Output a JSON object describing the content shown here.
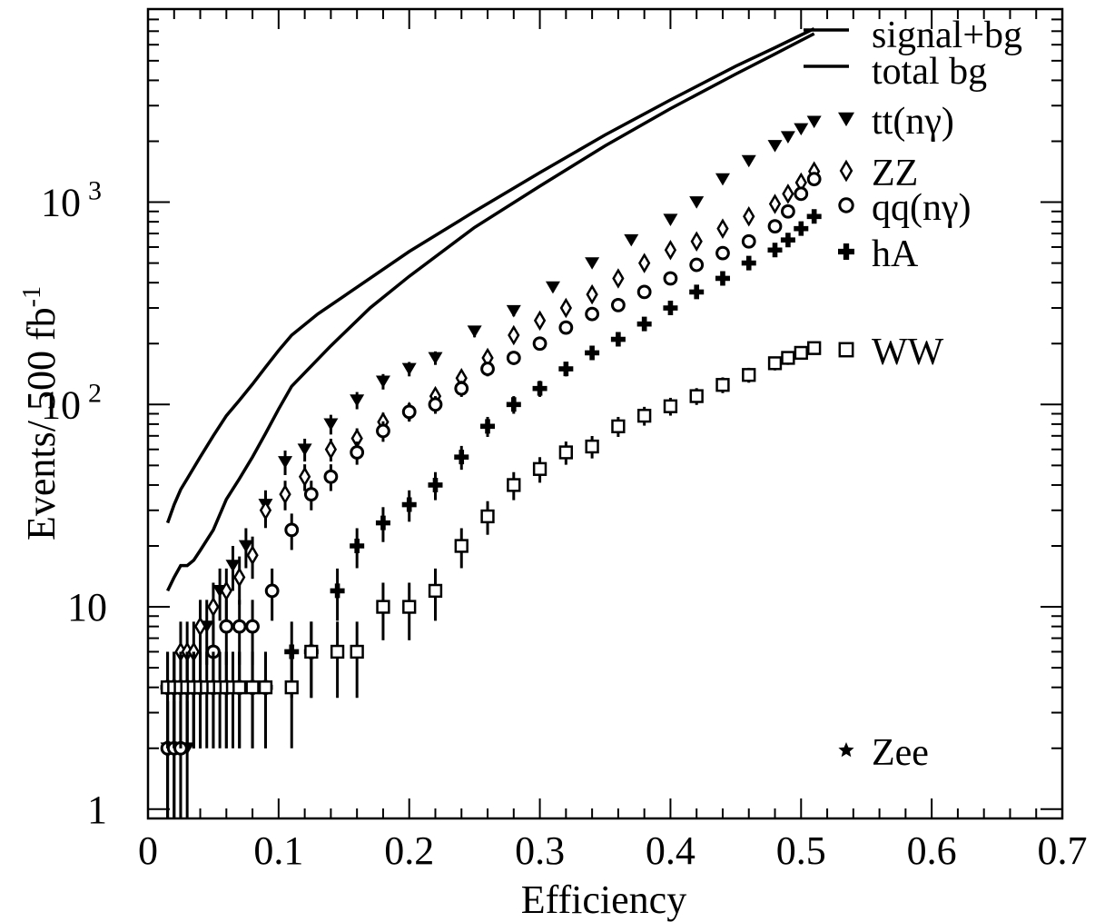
{
  "chart_data": {
    "type": "scatter",
    "xlabel": "Efficiency",
    "ylabel": "Events/ 500 fb",
    "ylabel_exp": "-1",
    "xlim": [
      0,
      0.7
    ],
    "ylim": [
      0.9,
      9000
    ],
    "yscale": "log",
    "grid": false,
    "legend_position": "top-right",
    "x_ticks": [
      {
        "v": 0,
        "label": "0"
      },
      {
        "v": 0.1,
        "label": "0.1"
      },
      {
        "v": 0.2,
        "label": "0.2"
      },
      {
        "v": 0.3,
        "label": "0.3"
      },
      {
        "v": 0.4,
        "label": "0.4"
      },
      {
        "v": 0.5,
        "label": "0.5"
      },
      {
        "v": 0.6,
        "label": "0.6"
      },
      {
        "v": 0.7,
        "label": "0.7"
      }
    ],
    "y_ticks": [
      {
        "v": 1,
        "label": "1",
        "exp": ""
      },
      {
        "v": 10,
        "label": "10",
        "exp": ""
      },
      {
        "v": 100,
        "label": "10",
        "exp": "2"
      },
      {
        "v": 1000,
        "label": "10",
        "exp": "3"
      }
    ],
    "lines": [
      {
        "name": "signal+bg",
        "x": [
          0.015,
          0.02,
          0.025,
          0.03,
          0.04,
          0.05,
          0.06,
          0.07,
          0.08,
          0.09,
          0.1,
          0.11,
          0.13,
          0.16,
          0.2,
          0.25,
          0.3,
          0.35,
          0.4,
          0.45,
          0.48,
          0.5,
          0.51
        ],
        "y": [
          26,
          32,
          38,
          43,
          55,
          70,
          88,
          105,
          126,
          153,
          185,
          220,
          280,
          380,
          570,
          900,
          1400,
          2150,
          3200,
          4700,
          5800,
          6700,
          7200
        ]
      },
      {
        "name": "total bg",
        "x": [
          0.015,
          0.02,
          0.025,
          0.03,
          0.035,
          0.04,
          0.05,
          0.06,
          0.07,
          0.08,
          0.09,
          0.1,
          0.11,
          0.14,
          0.17,
          0.2,
          0.25,
          0.3,
          0.35,
          0.4,
          0.45,
          0.48,
          0.5,
          0.51
        ],
        "y": [
          12,
          14,
          16,
          16,
          17,
          19,
          24,
          34,
          43,
          55,
          72,
          95,
          123,
          195,
          300,
          430,
          750,
          1200,
          1900,
          2900,
          4300,
          5400,
          6300,
          6800
        ]
      }
    ],
    "series": [
      {
        "name": "tt(nγ)",
        "marker": "triangle-down",
        "x": [
          0.015,
          0.02,
          0.025,
          0.03,
          0.035,
          0.045,
          0.055,
          0.065,
          0.075,
          0.09,
          0.105,
          0.12,
          0.14,
          0.16,
          0.18,
          0.2,
          0.22,
          0.25,
          0.28,
          0.31,
          0.34,
          0.37,
          0.4,
          0.42,
          0.44,
          0.46,
          0.48,
          0.49,
          0.5,
          0.51
        ],
        "y": [
          2,
          2,
          2,
          2,
          4,
          8,
          12,
          16,
          20,
          32,
          52,
          60,
          80,
          105,
          130,
          150,
          170,
          230,
          290,
          380,
          500,
          650,
          820,
          1000,
          1300,
          1600,
          1900,
          2100,
          2300,
          2500
        ]
      },
      {
        "name": "ZZ",
        "marker": "diamond",
        "x": [
          0.015,
          0.02,
          0.025,
          0.03,
          0.035,
          0.04,
          0.05,
          0.06,
          0.07,
          0.08,
          0.09,
          0.105,
          0.12,
          0.14,
          0.16,
          0.18,
          0.2,
          0.22,
          0.24,
          0.26,
          0.28,
          0.3,
          0.32,
          0.34,
          0.36,
          0.38,
          0.4,
          0.42,
          0.44,
          0.46,
          0.48,
          0.49,
          0.5,
          0.51
        ],
        "y": [
          2,
          4,
          6,
          6,
          6,
          8,
          10,
          12,
          14,
          18,
          30,
          36,
          44,
          60,
          68,
          82,
          92,
          110,
          135,
          170,
          220,
          260,
          300,
          350,
          420,
          500,
          580,
          640,
          740,
          850,
          980,
          1100,
          1250,
          1420
        ]
      },
      {
        "name": "qq(nγ)",
        "marker": "circle",
        "x": [
          0.015,
          0.02,
          0.025,
          0.03,
          0.035,
          0.04,
          0.05,
          0.06,
          0.07,
          0.08,
          0.095,
          0.11,
          0.125,
          0.14,
          0.16,
          0.18,
          0.2,
          0.22,
          0.24,
          0.26,
          0.28,
          0.3,
          0.32,
          0.34,
          0.36,
          0.38,
          0.4,
          0.42,
          0.44,
          0.46,
          0.48,
          0.49,
          0.5,
          0.51
        ],
        "y": [
          2,
          2,
          2,
          4,
          4,
          4,
          6,
          8,
          8,
          8,
          12,
          24,
          36,
          44,
          58,
          74,
          92,
          100,
          120,
          150,
          170,
          200,
          240,
          280,
          310,
          360,
          420,
          490,
          560,
          640,
          760,
          900,
          1100,
          1300
        ]
      },
      {
        "name": "hA",
        "marker": "cross",
        "x": [
          0.015,
          0.02,
          0.025,
          0.03,
          0.035,
          0.04,
          0.05,
          0.06,
          0.07,
          0.08,
          0.09,
          0.11,
          0.125,
          0.145,
          0.16,
          0.18,
          0.2,
          0.22,
          0.24,
          0.26,
          0.28,
          0.3,
          0.32,
          0.34,
          0.36,
          0.38,
          0.4,
          0.42,
          0.44,
          0.46,
          0.48,
          0.49,
          0.5,
          0.51
        ],
        "y": [
          4,
          4,
          4,
          4,
          4,
          4,
          4,
          4,
          4,
          4,
          4,
          6,
          6,
          12,
          20,
          26,
          32,
          40,
          55,
          78,
          100,
          120,
          150,
          180,
          210,
          250,
          300,
          360,
          420,
          500,
          580,
          650,
          740,
          850
        ]
      },
      {
        "name": "WW",
        "marker": "square",
        "x": [
          0.015,
          0.02,
          0.025,
          0.03,
          0.035,
          0.04,
          0.045,
          0.05,
          0.055,
          0.06,
          0.065,
          0.07,
          0.08,
          0.09,
          0.11,
          0.125,
          0.145,
          0.16,
          0.18,
          0.2,
          0.22,
          0.24,
          0.26,
          0.28,
          0.3,
          0.32,
          0.34,
          0.36,
          0.38,
          0.4,
          0.42,
          0.44,
          0.46,
          0.48,
          0.49,
          0.5,
          0.51
        ],
        "y": [
          4,
          4,
          4,
          4,
          4,
          4,
          4,
          4,
          4,
          4,
          4,
          4,
          4,
          4,
          4,
          6,
          6,
          6,
          10,
          10,
          12,
          20,
          28,
          40,
          48,
          58,
          62,
          78,
          88,
          98,
          110,
          125,
          140,
          160,
          170,
          180,
          190
        ]
      },
      {
        "name": "Zee",
        "marker": "star",
        "x": [],
        "y": []
      }
    ]
  }
}
